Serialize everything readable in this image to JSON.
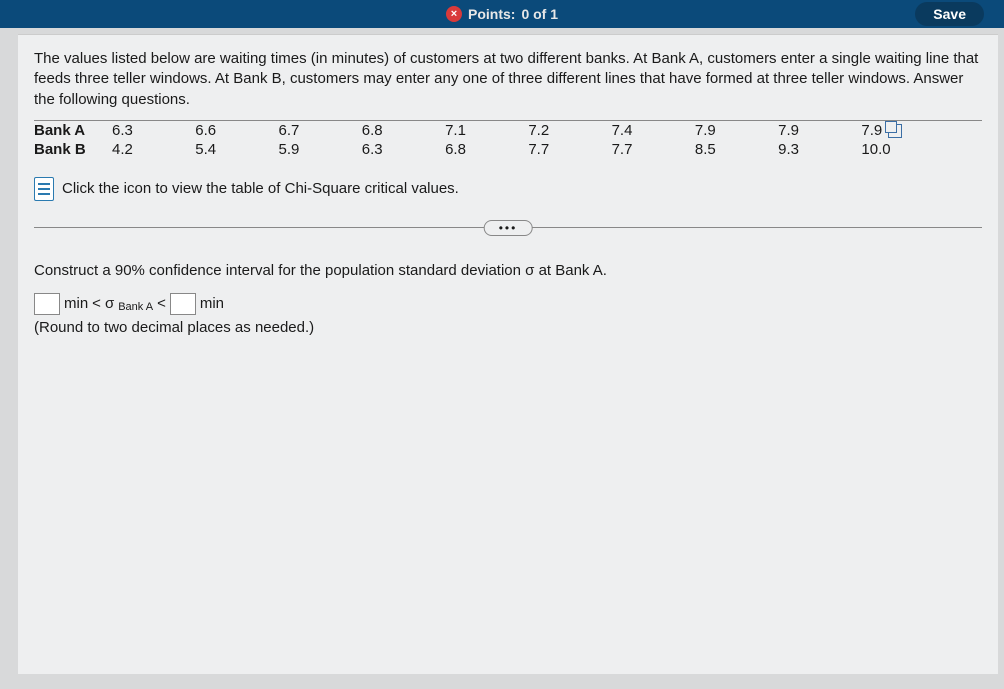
{
  "header": {
    "points_label": "Points:",
    "points_value": "0 of 1",
    "save_label": "Save",
    "close_glyph": "×"
  },
  "problem": {
    "text": "The values listed below are waiting times (in minutes) of customers at two different banks. At Bank A, customers enter a single waiting line that feeds three teller windows. At Bank B, customers may enter any one of three different lines that have formed at three teller windows. Answer the following questions."
  },
  "data": {
    "rows": [
      {
        "label": "Bank A",
        "values": [
          "6.3",
          "6.6",
          "6.7",
          "6.8",
          "7.1",
          "7.2",
          "7.4",
          "7.9",
          "7.9",
          "7.9"
        ]
      },
      {
        "label": "Bank B",
        "values": [
          "4.2",
          "5.4",
          "5.9",
          "6.3",
          "6.8",
          "7.7",
          "7.7",
          "8.5",
          "9.3",
          "10.0"
        ]
      }
    ]
  },
  "chi_link": "Click the icon to view the table of Chi-Square critical values.",
  "ellipsis": "•••",
  "question": {
    "prompt": "Construct a 90% confidence interval for the population standard deviation σ at Bank A.",
    "unit": "min",
    "lt": "<",
    "sigma": "σ",
    "sub": "Bank A",
    "note": "(Round to two decimal places as needed.)"
  }
}
